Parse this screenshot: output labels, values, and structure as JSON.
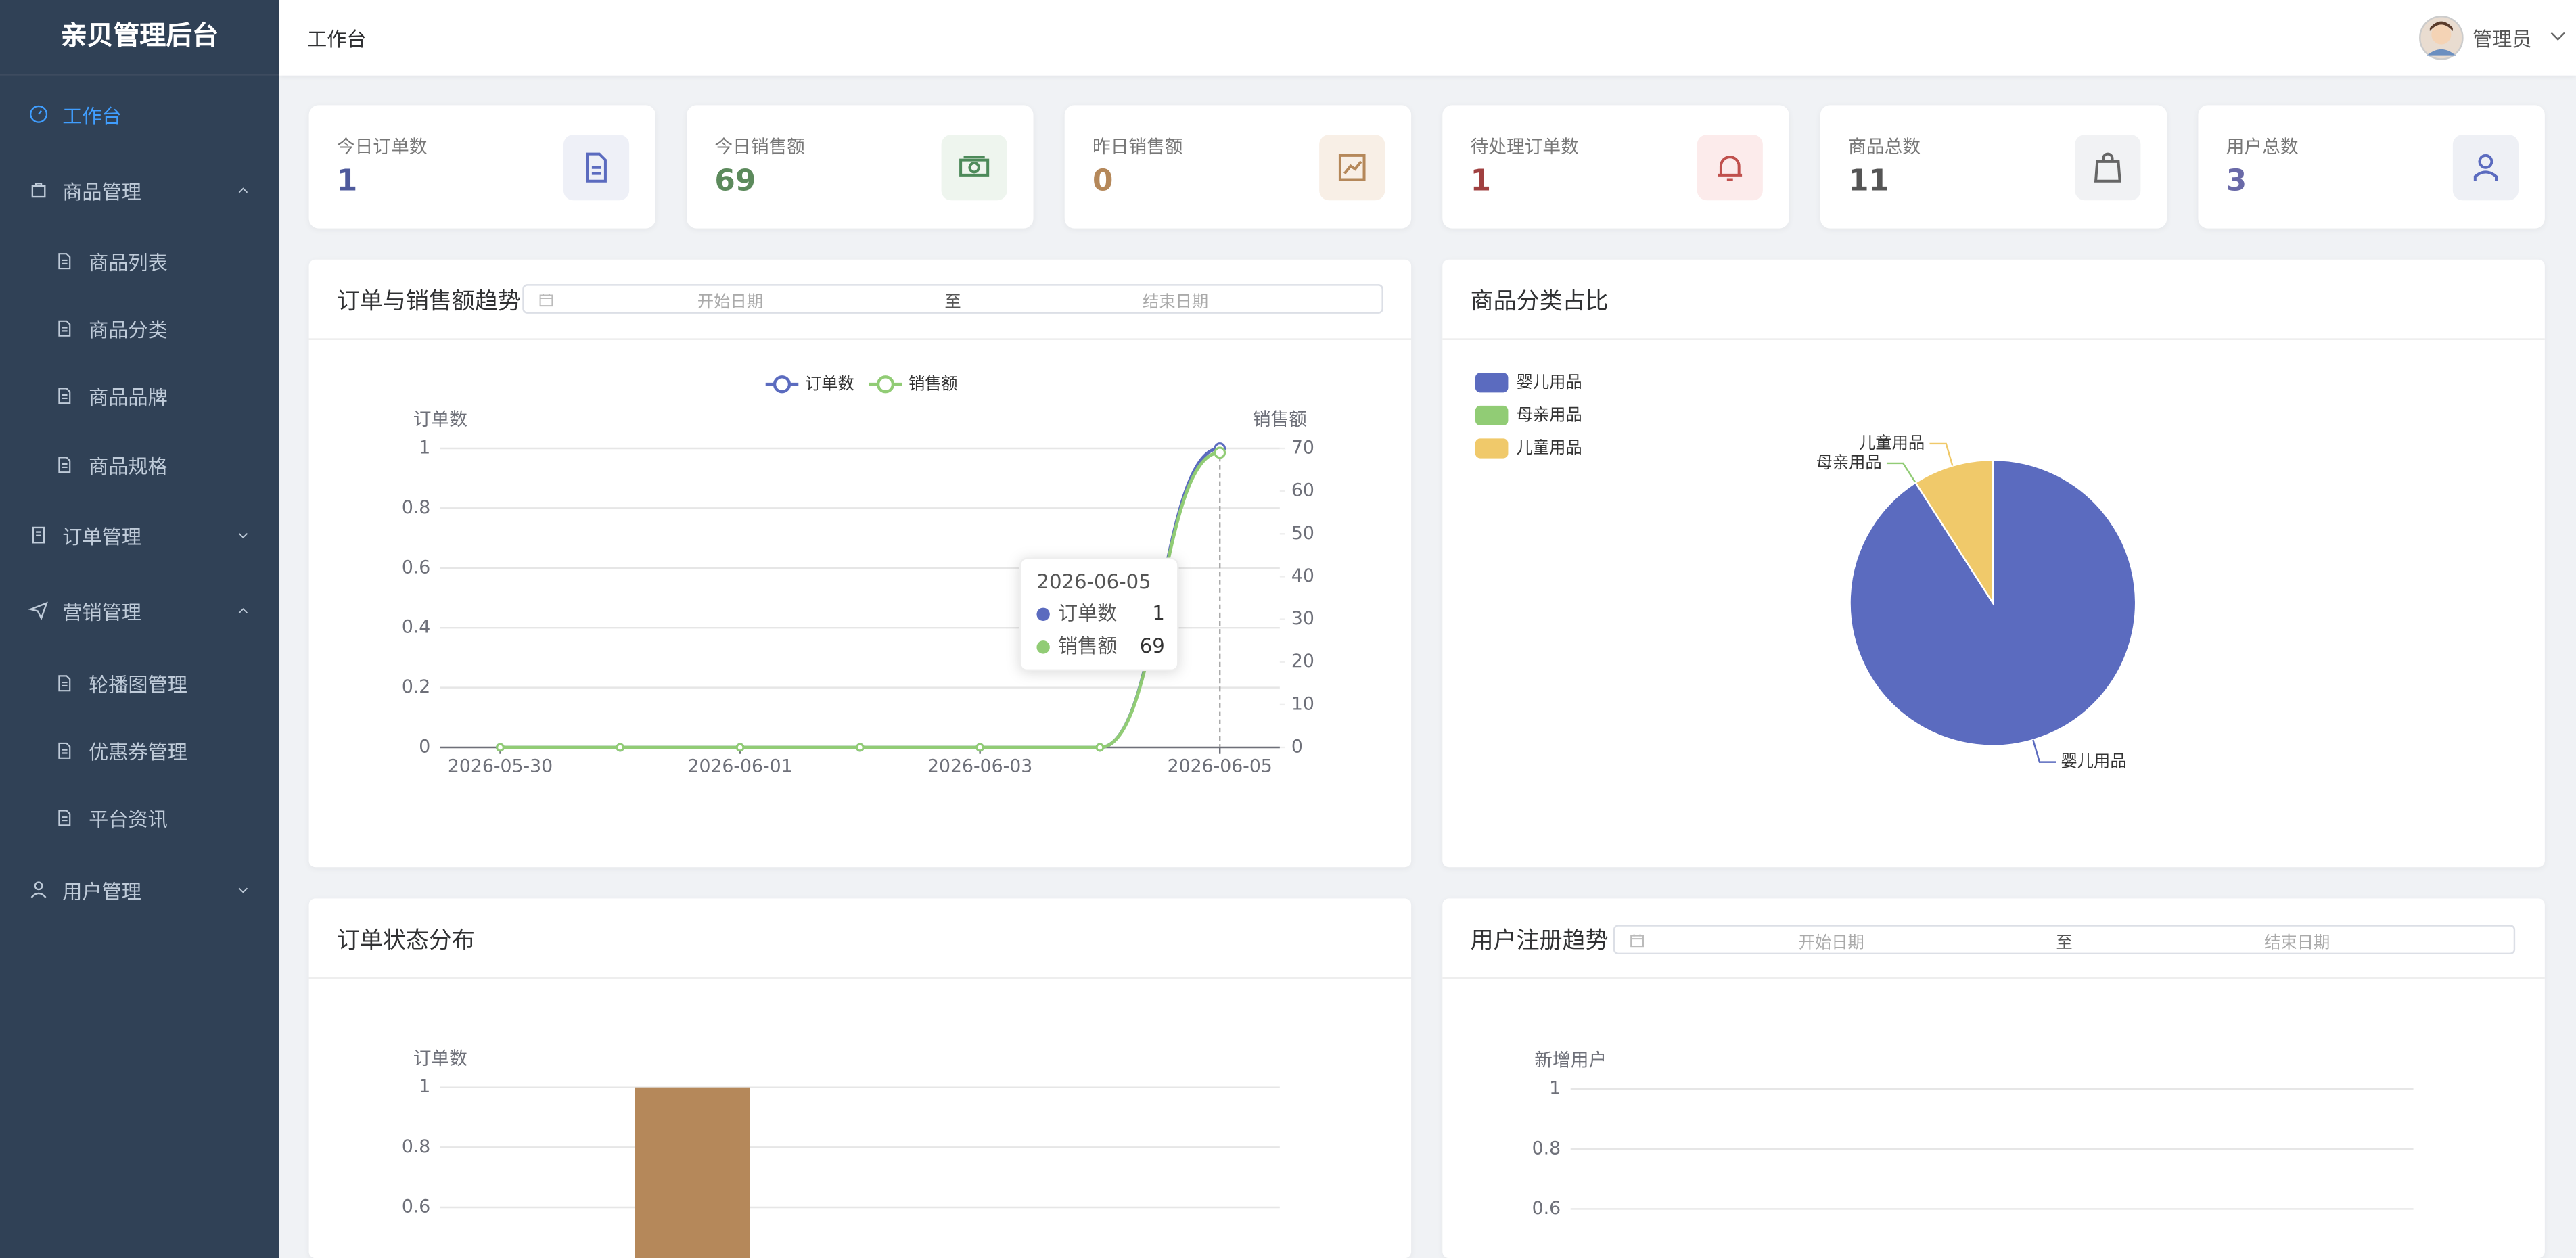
{
  "sidebar": {
    "title": "亲贝管理后台",
    "menu": [
      {
        "label": "工作台"
      },
      {
        "label": "商品管理",
        "children": [
          "商品列表",
          "商品分类",
          "商品品牌",
          "商品规格"
        ]
      },
      {
        "label": "订单管理"
      },
      {
        "label": "营销管理",
        "children": [
          "轮播图管理",
          "优惠券管理",
          "平台资讯"
        ]
      },
      {
        "label": "用户管理"
      }
    ]
  },
  "header": {
    "title": "工作台",
    "user": "管理员"
  },
  "stats": [
    {
      "label": "今日订单数",
      "value": 1
    },
    {
      "label": "今日销售额",
      "value": 69
    },
    {
      "label": "昨日销售额",
      "value": 0
    },
    {
      "label": "待处理订单数",
      "value": 1
    },
    {
      "label": "商品总数",
      "value": 11
    },
    {
      "label": "用户总数",
      "value": 3
    }
  ],
  "date_range": {
    "start": "开始日期",
    "separator": "至",
    "end": "结束日期"
  },
  "chart_data": [
    {
      "type": "line",
      "title": "订单与销售额趋势",
      "categories": [
        "2026-05-30",
        null,
        "2026-06-01",
        null,
        "2026-06-03",
        null,
        "2026-06-05"
      ],
      "series": [
        {
          "name": "订单数",
          "color": "#5b6bbf",
          "values": [
            0,
            0,
            0,
            0,
            0,
            0,
            1
          ]
        },
        {
          "name": "销售额",
          "color": "#91cc75",
          "values": [
            0,
            0,
            0,
            0,
            0,
            0,
            69
          ],
          "axis": "y2"
        }
      ],
      "y_label": "订单数",
      "y2_label": "销售额",
      "ylim": [
        0,
        1
      ],
      "yticks": [
        0,
        0.2,
        0.4,
        0.6,
        0.8,
        1
      ],
      "y2lim": [
        0,
        70
      ],
      "y2ticks": [
        0,
        10,
        20,
        30,
        40,
        50,
        60,
        70
      ],
      "grid": true,
      "legend": "top",
      "tooltip": {
        "title": "2026-06-05",
        "items": [
          {
            "name": "订单数",
            "value": 1
          },
          {
            "name": "销售额",
            "value": 69
          }
        ]
      }
    },
    {
      "type": "pie",
      "title": "商品分类占比",
      "categories": [
        "婴儿用品",
        "母亲用品",
        "儿童用品"
      ],
      "values": [
        10,
        0,
        1
      ],
      "colors": [
        "#5b6bbf",
        "#91cc75",
        "#f0c96a"
      ],
      "legend": "top-left"
    },
    {
      "type": "bar",
      "title": "订单状态分布",
      "categories": [
        null,
        null,
        null,
        null,
        null
      ],
      "values": [
        0,
        1,
        0,
        0,
        0
      ],
      "color": "#b5885a",
      "y_label": "订单数",
      "ylim": [
        0,
        1
      ],
      "yticks": [
        0.6,
        0.8,
        1
      ],
      "grid": true
    },
    {
      "type": "line",
      "title": "用户注册趋势",
      "y_label": "新增用户",
      "ylim": [
        0,
        1
      ],
      "yticks": [
        0.6,
        0.8,
        1
      ],
      "grid": true
    }
  ]
}
